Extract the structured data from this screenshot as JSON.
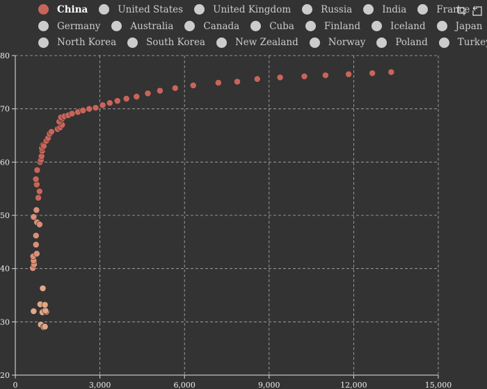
{
  "legend": {
    "rows": [
      [
        "China",
        "United States",
        "United Kingdom",
        "Russia",
        "India",
        "France"
      ],
      [
        "Germany",
        "Australia",
        "Canada",
        "Cuba",
        "Finland",
        "Iceland",
        "Japan"
      ],
      [
        "North Korea",
        "South Korea",
        "New Zealand",
        "Norway",
        "Poland",
        "Turkey"
      ]
    ],
    "active": "China"
  },
  "toolbox": {
    "icons": [
      "data-zoom-icon",
      "restore-icon"
    ]
  },
  "colors": {
    "background": "#333333",
    "series": "#c7655a",
    "early_points": "#e0a887",
    "inactive_legend": "#cccccc",
    "grid": "#cfcfcf"
  },
  "chart_data": {
    "type": "scatter",
    "xlim": [
      0,
      15000
    ],
    "ylim": [
      20,
      80
    ],
    "x_ticks": [
      "0",
      "3,000",
      "6,000",
      "9,000",
      "12,000",
      "15,000"
    ],
    "y_ticks": [
      "20",
      "30",
      "40",
      "50",
      "60",
      "70",
      "80"
    ],
    "grid": true,
    "legend_position": "top",
    "series": [
      {
        "name": "China",
        "points": [
          [
            985,
            32.0
          ],
          [
            960,
            31.8
          ],
          [
            1100,
            31.9
          ],
          [
            1070,
            32.1
          ],
          [
            885,
            33.3
          ],
          [
            1050,
            33.2
          ],
          [
            975,
            36.3
          ],
          [
            905,
            29.5
          ],
          [
            1005,
            29.0
          ],
          [
            1050,
            29.1
          ],
          [
            650,
            32.0
          ],
          [
            620,
            40.1
          ],
          [
            665,
            40.8
          ],
          [
            650,
            41.5
          ],
          [
            635,
            42.3
          ],
          [
            760,
            42.8
          ],
          [
            735,
            44.5
          ],
          [
            735,
            46.2
          ],
          [
            770,
            48.7
          ],
          [
            860,
            48.3
          ],
          [
            650,
            49.7
          ],
          [
            750,
            51.0
          ],
          [
            815,
            53.3
          ],
          [
            860,
            54.5
          ],
          [
            760,
            55.8
          ],
          [
            730,
            56.8
          ],
          [
            775,
            58.5
          ],
          [
            880,
            60.0
          ],
          [
            910,
            60.4
          ],
          [
            930,
            61.1
          ],
          [
            955,
            62.1
          ],
          [
            945,
            62.6
          ],
          [
            980,
            63.2
          ],
          [
            1010,
            63.0
          ],
          [
            1100,
            64.0
          ],
          [
            1160,
            64.5
          ],
          [
            1220,
            65.3
          ],
          [
            1280,
            65.7
          ],
          [
            1500,
            66.2
          ],
          [
            1590,
            66.5
          ],
          [
            1660,
            67.0
          ],
          [
            1560,
            67.6
          ],
          [
            1650,
            68.1
          ],
          [
            1620,
            68.4
          ],
          [
            1740,
            68.6
          ],
          [
            1880,
            68.8
          ],
          [
            2010,
            69.1
          ],
          [
            2220,
            69.4
          ],
          [
            2400,
            69.7
          ],
          [
            2620,
            70.0
          ],
          [
            2850,
            70.2
          ],
          [
            3100,
            70.7
          ],
          [
            3350,
            71.1
          ],
          [
            3620,
            71.5
          ],
          [
            3940,
            71.9
          ],
          [
            4300,
            72.3
          ],
          [
            4700,
            72.9
          ],
          [
            5130,
            73.4
          ],
          [
            5670,
            73.9
          ],
          [
            6310,
            74.4
          ],
          [
            7200,
            74.9
          ],
          [
            7870,
            75.1
          ],
          [
            8580,
            75.6
          ],
          [
            9390,
            75.9
          ],
          [
            10250,
            76.1
          ],
          [
            11000,
            76.3
          ],
          [
            11820,
            76.5
          ],
          [
            12660,
            76.7
          ],
          [
            13330,
            76.9
          ]
        ]
      }
    ]
  }
}
